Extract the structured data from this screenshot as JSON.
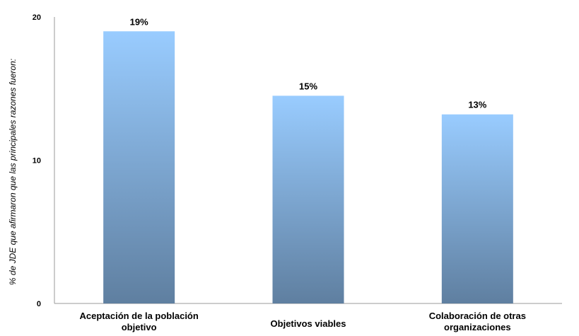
{
  "chart_data": {
    "type": "bar",
    "title": "",
    "xlabel": "",
    "ylabel": "% de JDE que afirmaron que  las principales razones fueron:",
    "ylim": [
      0,
      20
    ],
    "yticks": [
      "0",
      "10",
      "20"
    ],
    "grid": false,
    "categories": [
      [
        "Aceptación de la población",
        "objetivo"
      ],
      [
        "Objetivos viables"
      ],
      [
        "Colaboración de otras",
        "organizaciones"
      ]
    ],
    "values": [
      19,
      14.5,
      13.2
    ],
    "data_labels": [
      "19%",
      "15%",
      "13%"
    ],
    "colors": {
      "bar_top": "#99ccff",
      "bar_bottom": "#5f7fa0"
    }
  }
}
